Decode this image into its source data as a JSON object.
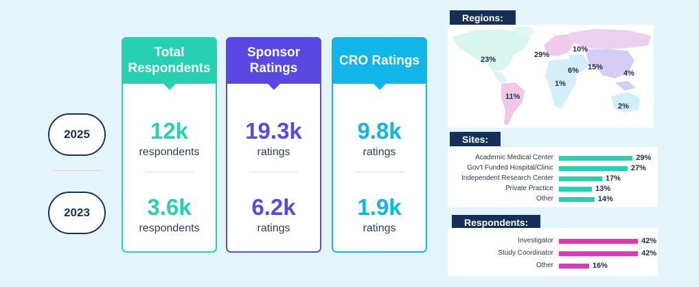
{
  "years": [
    "2025",
    "2023"
  ],
  "cards": [
    {
      "title": "Total Respondents",
      "color": "#25d1b0",
      "v2025": "12k",
      "u2025": "respondents",
      "v2023": "3.6k",
      "u2023": "respondents"
    },
    {
      "title": "Sponsor Ratings",
      "color": "#5a48e2",
      "v2025": "19.3k",
      "u2025": "ratings",
      "v2023": "6.2k",
      "u2023": "ratings"
    },
    {
      "title": "CRO Ratings",
      "color": "#12b5e8",
      "v2025": "9.8k",
      "u2025": "ratings",
      "v2023": "1.9k",
      "u2023": "ratings"
    }
  ],
  "regions": {
    "title": "Regions:",
    "labels": [
      "23%",
      "29%",
      "10%",
      "6%",
      "15%",
      "4%",
      "1%",
      "11%",
      "2%"
    ]
  },
  "sites": {
    "title": "Sites:",
    "color": "#25d1b0",
    "items": [
      {
        "label": "Academic Medical Center",
        "pct": "29%",
        "value": 29
      },
      {
        "label": "Gov't Funded Hospital/Clinic",
        "pct": "27%",
        "value": 27
      },
      {
        "label": "Independent Research Center",
        "pct": "17%",
        "value": 17
      },
      {
        "label": "Private Practice",
        "pct": "13%",
        "value": 13
      },
      {
        "label": "Other",
        "pct": "14%",
        "value": 14
      }
    ]
  },
  "respondents": {
    "title": "Respondents:",
    "color": "#d23db0",
    "items": [
      {
        "label": "Investigator",
        "pct": "42%",
        "value": 42
      },
      {
        "label": "Study Coordinator",
        "pct": "42%",
        "value": 42
      },
      {
        "label": "Other",
        "pct": "16%",
        "value": 16
      }
    ]
  }
}
